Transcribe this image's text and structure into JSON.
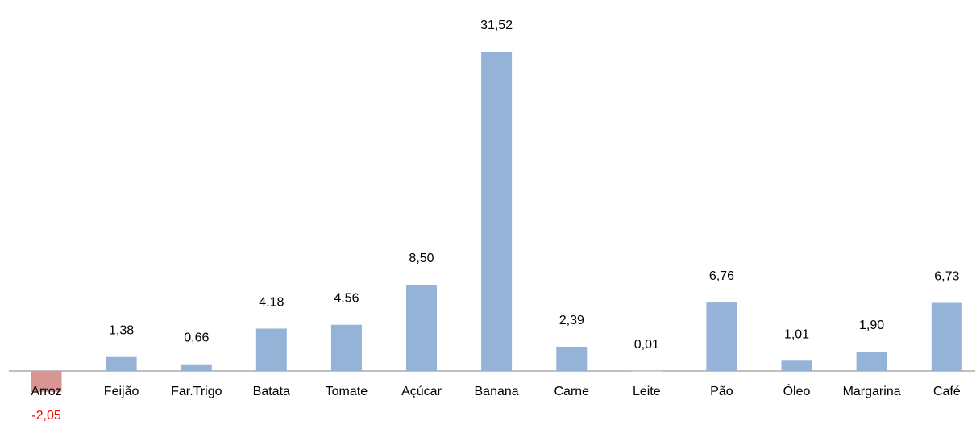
{
  "chart_data": {
    "type": "bar",
    "title": "",
    "xlabel": "",
    "ylabel": "",
    "categories": [
      "Arroz",
      "Feijão",
      "Far.Trigo",
      "Batata",
      "Tomate",
      "Açúcar",
      "Banana",
      "Carne",
      "Leite",
      "Pão",
      "Óleo",
      "Margarina",
      "Café"
    ],
    "values": [
      -2.05,
      1.38,
      0.66,
      4.18,
      4.56,
      8.5,
      31.52,
      2.39,
      0.01,
      6.76,
      1.01,
      1.9,
      6.73
    ],
    "value_labels": [
      "-2,05",
      "1,38",
      "0,66",
      "4,18",
      "4,56",
      "8,50",
      "31,52",
      "2,39",
      "0,01",
      "6,76",
      "1,01",
      "1,90",
      "6,73"
    ],
    "ylim": [
      -2.05,
      31.52
    ],
    "grid": false,
    "legend": "none",
    "colors": {
      "positive_bar": "#95b3d7",
      "negative_bar": "#d99594",
      "negative_label": "#ff0000",
      "positive_label": "#000000",
      "axis": "#808080"
    }
  }
}
